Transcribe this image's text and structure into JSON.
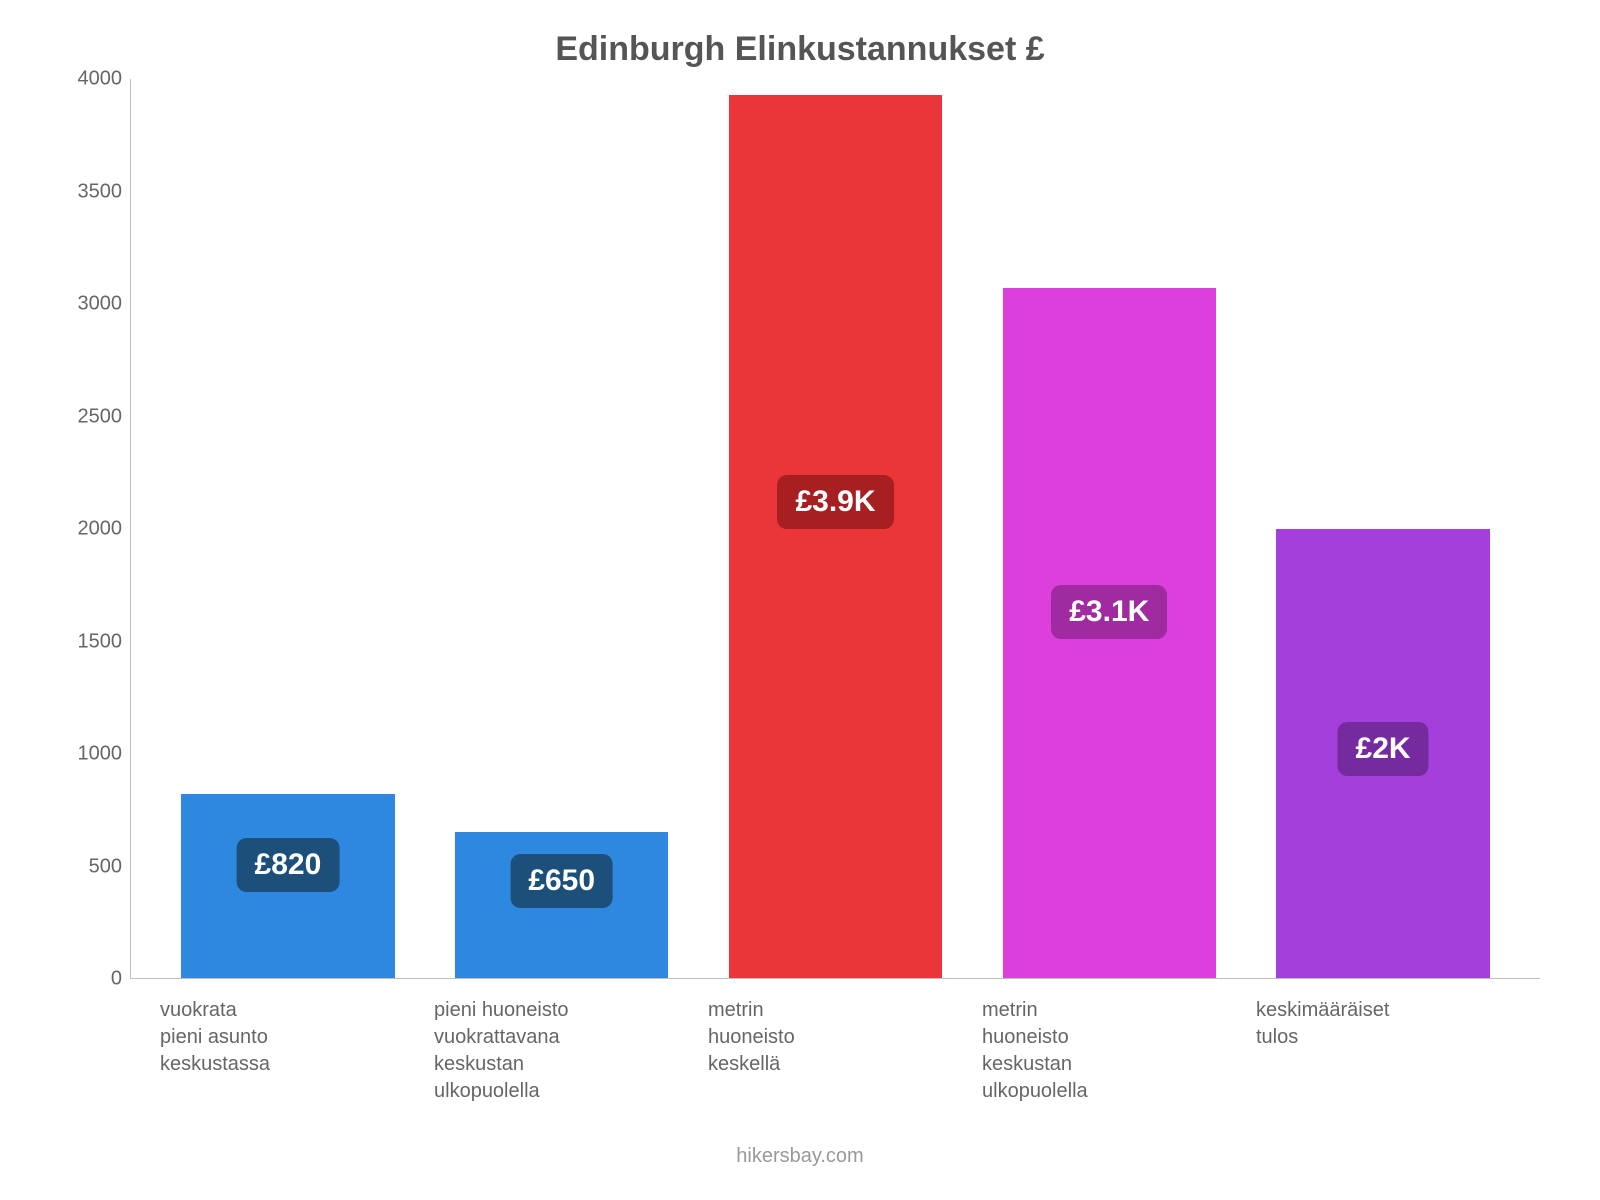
{
  "chart": {
    "type": "bar",
    "title_prefix": "Edinburgh",
    "title_rest": " Elinkustannukset £",
    "title_fontsize": 34,
    "title_color": "#555558",
    "background_color": "#ffffff",
    "axis_color": "#bfbfbf",
    "tick_color": "#666668",
    "tick_fontsize": 20,
    "label_fontsize": 20,
    "ylim": [
      0,
      4000
    ],
    "yticks": [
      0,
      500,
      1000,
      1500,
      2000,
      2500,
      3000,
      3500,
      4000
    ],
    "bar_width_pct": 78,
    "credit": "hikersbay.com",
    "credit_color": "#99999b",
    "badge_fontsize": 30,
    "badge_radius": 10,
    "bars": [
      {
        "label": "vuokrata\npieni asunto\nkeskustassa",
        "value": 820,
        "value_label": "£820",
        "color": "#2f88e0",
        "badge_bg": "#1c4f79",
        "badge_top_pct": 24
      },
      {
        "label": "pieni huoneisto\nvuokrattavana\nkeskustan\nulkopuolella",
        "value": 650,
        "value_label": "£650",
        "color": "#2f88e0",
        "badge_bg": "#1c4f79",
        "badge_top_pct": 15
      },
      {
        "label": "metrin\nhuoneisto\nkeskellä",
        "value": 3930,
        "value_label": "£3.9K",
        "color": "#eb3639",
        "badge_bg": "#a81f22",
        "badge_top_pct": 43
      },
      {
        "label": "metrin\nhuoneisto\nkeskustan\nulkopuolella",
        "value": 3070,
        "value_label": "£3.1K",
        "color": "#dc3fdc",
        "badge_bg": "#a02aa0",
        "badge_top_pct": 43
      },
      {
        "label": "keskimääräiset\ntulos",
        "value": 2000,
        "value_label": "£2K",
        "color": "#a53fdc",
        "badge_bg": "#762aa0",
        "badge_top_pct": 43
      }
    ]
  }
}
